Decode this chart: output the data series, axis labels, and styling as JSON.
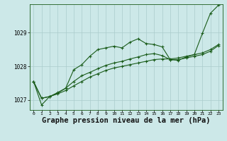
{
  "background_color": "#cce8e8",
  "grid_color": "#aacccc",
  "line_color": "#1a5c1a",
  "xlabel": "Graphe pression niveau de la mer (hPa)",
  "xlabel_fontsize": 7.5,
  "ylim": [
    1026.7,
    1029.85
  ],
  "xlim": [
    -0.5,
    23.5
  ],
  "yticks": [
    1027,
    1028,
    1029
  ],
  "xticks": [
    0,
    1,
    2,
    3,
    4,
    5,
    6,
    7,
    8,
    9,
    10,
    11,
    12,
    13,
    14,
    15,
    16,
    17,
    18,
    19,
    20,
    21,
    22,
    23
  ],
  "series1": [
    1027.55,
    1026.85,
    1027.1,
    1027.2,
    1027.35,
    1027.9,
    1028.05,
    1028.3,
    1028.5,
    1028.55,
    1028.6,
    1028.55,
    1028.72,
    1028.82,
    1028.68,
    1028.65,
    1028.58,
    1028.2,
    1028.18,
    1028.28,
    1028.35,
    1028.98,
    1029.58,
    1029.82
  ],
  "series2": [
    1027.55,
    1027.05,
    1027.1,
    1027.22,
    1027.35,
    1027.55,
    1027.72,
    1027.82,
    1027.93,
    1028.03,
    1028.1,
    1028.15,
    1028.22,
    1028.28,
    1028.35,
    1028.38,
    1028.32,
    1028.2,
    1028.2,
    1028.25,
    1028.3,
    1028.35,
    1028.45,
    1028.62
  ],
  "series3": [
    1027.55,
    1027.05,
    1027.1,
    1027.18,
    1027.28,
    1027.42,
    1027.55,
    1027.68,
    1027.78,
    1027.88,
    1027.95,
    1028.0,
    1028.05,
    1028.1,
    1028.15,
    1028.2,
    1028.22,
    1028.22,
    1028.25,
    1028.3,
    1028.35,
    1028.4,
    1028.5,
    1028.65
  ]
}
